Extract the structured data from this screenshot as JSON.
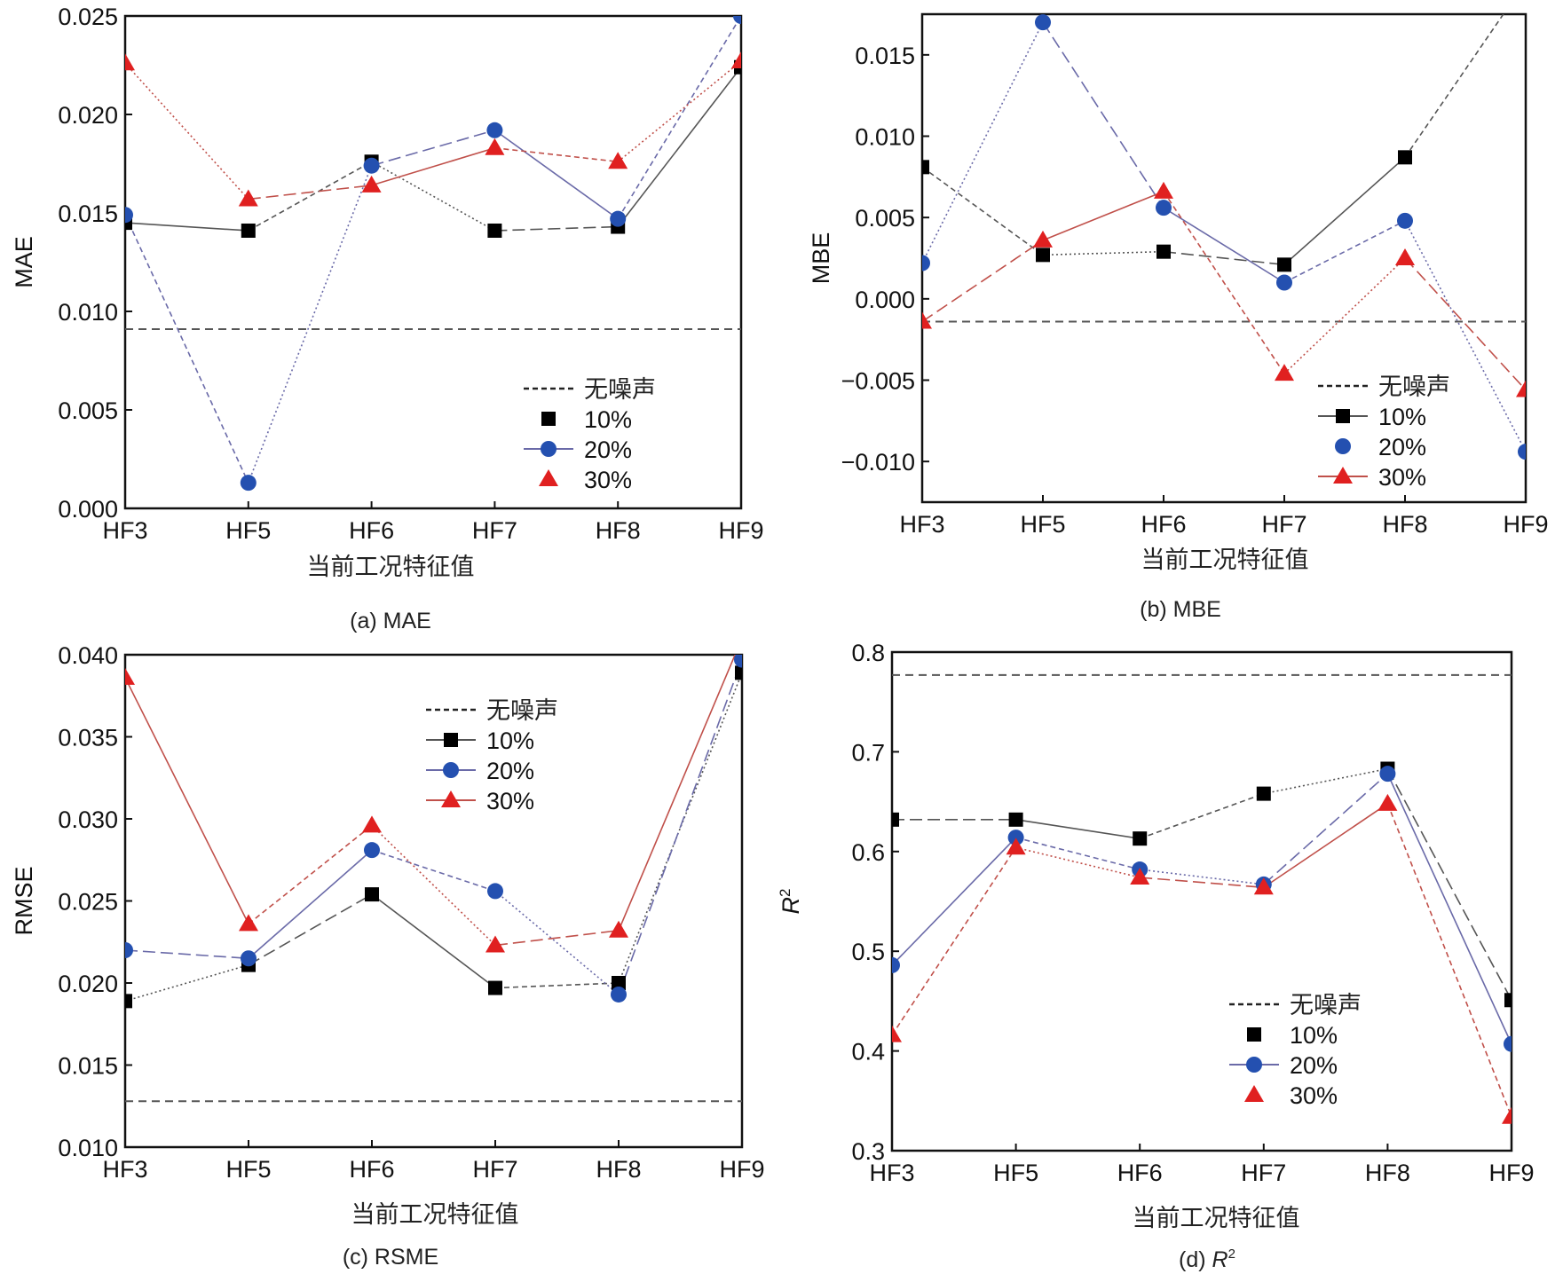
{
  "figure": {
    "colors": {
      "s10": "#000000",
      "s20": "#2450b0",
      "s30": "#e02020",
      "line10": "#555555",
      "line20": "#6a6aa8",
      "line30": "#c0504a",
      "baseline": "#555555"
    }
  },
  "chart_data": [
    {
      "id": "a",
      "type": "line",
      "caption": "(a) MAE",
      "title": "",
      "xlabel": "当前工况特征值",
      "ylabel": "MAE",
      "categories": [
        "HF3",
        "HF5",
        "HF6",
        "HF7",
        "HF8",
        "HF9"
      ],
      "ylim": [
        0.0,
        0.025
      ],
      "yticks": [
        0.0,
        0.005,
        0.01,
        0.015,
        0.02,
        0.025
      ],
      "ytick_labels": [
        "0.000",
        "0.005",
        "0.010",
        "0.015",
        "0.020",
        "0.025"
      ],
      "baseline": {
        "name": "无噪声",
        "value": 0.0091
      },
      "series": [
        {
          "name": "10%",
          "marker": "square",
          "values": [
            0.0145,
            0.0141,
            0.0176,
            0.0141,
            0.0143,
            0.0224
          ]
        },
        {
          "name": "20%",
          "marker": "circle",
          "values": [
            0.0149,
            0.0013,
            0.0174,
            0.0192,
            0.0147,
            0.025
          ]
        },
        {
          "name": "30%",
          "marker": "triangle",
          "values": [
            0.0226,
            0.0157,
            0.0164,
            0.0183,
            0.0176,
            0.0227
          ]
        }
      ],
      "legend": {
        "position": "bottom-right",
        "entries": [
          "无噪声",
          "10%",
          "20%",
          "30%"
        ],
        "line_on": [
          true,
          false,
          true,
          false
        ]
      },
      "grid": false
    },
    {
      "id": "b",
      "type": "line",
      "caption": "(b) MBE",
      "title": "",
      "xlabel": "当前工况特征值",
      "ylabel": "MBE",
      "categories": [
        "HF3",
        "HF5",
        "HF6",
        "HF7",
        "HF8",
        "HF9"
      ],
      "ylim": [
        -0.0125,
        0.0175
      ],
      "yticks": [
        -0.01,
        -0.005,
        0.0,
        0.005,
        0.01,
        0.015
      ],
      "ytick_labels": [
        "−0.010",
        "−0.005",
        "0.000",
        "0.005",
        "0.010",
        "0.015"
      ],
      "baseline": {
        "name": "无噪声",
        "value": -0.0014
      },
      "series": [
        {
          "name": "10%",
          "marker": "square",
          "values": [
            0.0081,
            0.0027,
            0.0029,
            0.0021,
            0.0087,
            0.0195
          ]
        },
        {
          "name": "20%",
          "marker": "circle",
          "values": [
            0.0022,
            0.017,
            0.0056,
            0.001,
            0.0048,
            -0.0094
          ]
        },
        {
          "name": "30%",
          "marker": "triangle",
          "values": [
            -0.0014,
            0.0036,
            0.0066,
            -0.0046,
            0.0025,
            -0.0056
          ]
        }
      ],
      "legend": {
        "position": "bottom-right",
        "entries": [
          "无噪声",
          "10%",
          "20%",
          "30%"
        ],
        "line_on": [
          true,
          true,
          false,
          true
        ]
      },
      "grid": false
    },
    {
      "id": "c",
      "type": "line",
      "caption": "(c) RSME",
      "title": "",
      "xlabel": "当前工况特征值",
      "ylabel": "RMSE",
      "categories": [
        "HF3",
        "HF5",
        "HF6",
        "HF7",
        "HF8",
        "HF9"
      ],
      "ylim": [
        0.01,
        0.04
      ],
      "yticks": [
        0.01,
        0.015,
        0.02,
        0.025,
        0.03,
        0.035,
        0.04
      ],
      "ytick_labels": [
        "0.010",
        "0.015",
        "0.020",
        "0.025",
        "0.030",
        "0.035",
        "0.040"
      ],
      "baseline": {
        "name": "无噪声",
        "value": 0.0128
      },
      "series": [
        {
          "name": "10%",
          "marker": "square",
          "values": [
            0.0189,
            0.0211,
            0.0254,
            0.0197,
            0.02,
            0.0389
          ]
        },
        {
          "name": "20%",
          "marker": "circle",
          "values": [
            0.022,
            0.0215,
            0.0281,
            0.0256,
            0.0193,
            0.0397
          ]
        },
        {
          "name": "30%",
          "marker": "triangle",
          "values": [
            0.0386,
            0.0236,
            0.0296,
            0.0223,
            0.0232,
            0.041
          ]
        }
      ],
      "legend": {
        "position": "top-right",
        "entries": [
          "无噪声",
          "10%",
          "20%",
          "30%"
        ],
        "line_on": [
          true,
          true,
          true,
          true
        ]
      },
      "grid": false
    },
    {
      "id": "d",
      "type": "line",
      "caption": "(d) R",
      "caption_sup": "2",
      "title": "",
      "xlabel": "当前工况特征值",
      "ylabel": "R",
      "ylabel_sup": "2",
      "categories": [
        "HF3",
        "HF5",
        "HF6",
        "HF7",
        "HF8",
        "HF9"
      ],
      "ylim": [
        0.3,
        0.8
      ],
      "yticks": [
        0.3,
        0.4,
        0.5,
        0.6,
        0.7,
        0.8
      ],
      "ytick_labels": [
        "0.3",
        "0.4",
        "0.5",
        "0.6",
        "0.7",
        "0.8"
      ],
      "baseline": {
        "name": "无噪声",
        "value": 0.777
      },
      "series": [
        {
          "name": "10%",
          "marker": "square",
          "values": [
            0.632,
            0.632,
            0.613,
            0.658,
            0.683,
            0.451
          ]
        },
        {
          "name": "20%",
          "marker": "circle",
          "values": [
            0.486,
            0.614,
            0.582,
            0.567,
            0.678,
            0.407
          ]
        },
        {
          "name": "30%",
          "marker": "triangle",
          "values": [
            0.416,
            0.604,
            0.574,
            0.564,
            0.648,
            0.334
          ]
        }
      ],
      "legend": {
        "position": "bottom-right",
        "entries": [
          "无噪声",
          "10%",
          "20%",
          "30%"
        ],
        "line_on": [
          true,
          false,
          true,
          false
        ]
      },
      "grid": false
    }
  ]
}
